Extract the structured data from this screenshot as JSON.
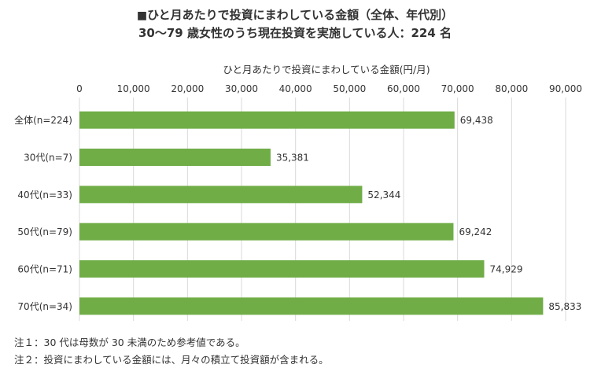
{
  "title": {
    "square": "■",
    "line1": "ひと月あたりで投資にまわしている金額（全体、年代別）",
    "line2": "30〜79 歳女性のうち現在投資を実施している人：224 名"
  },
  "notes": [
    "注１：30 代は母数が 30 未満のため参考値である。",
    "注２：投資にまわしている金額には、月々の積立て投資額が含まれる。"
  ],
  "colors": {
    "bar": "#70ad47",
    "grid": "#d9d9d9",
    "text": "#333333"
  },
  "chart_data": {
    "type": "bar",
    "orientation": "horizontal",
    "xlabel": "ひと月あたりで投資にまわしている金額(円/月)",
    "ylabel": "",
    "xlim": [
      0,
      90000
    ],
    "ticks": [
      0,
      10000,
      20000,
      30000,
      40000,
      50000,
      60000,
      70000,
      80000,
      90000
    ],
    "tick_labels": [
      "0",
      "10,000",
      "20,000",
      "30,000",
      "40,000",
      "50,000",
      "60,000",
      "70,000",
      "80,000",
      "90,000"
    ],
    "grid": true,
    "categories": [
      "全体(n=224)",
      "30代(n=7)",
      "40代(n=33)",
      "50代(n=79)",
      "60代(n=71)",
      "70代(n=34)"
    ],
    "values": [
      69438,
      35381,
      52344,
      69242,
      74929,
      85833
    ],
    "value_labels": [
      "69,438",
      "35,381",
      "52,344",
      "69,242",
      "74,929",
      "85,833"
    ]
  }
}
